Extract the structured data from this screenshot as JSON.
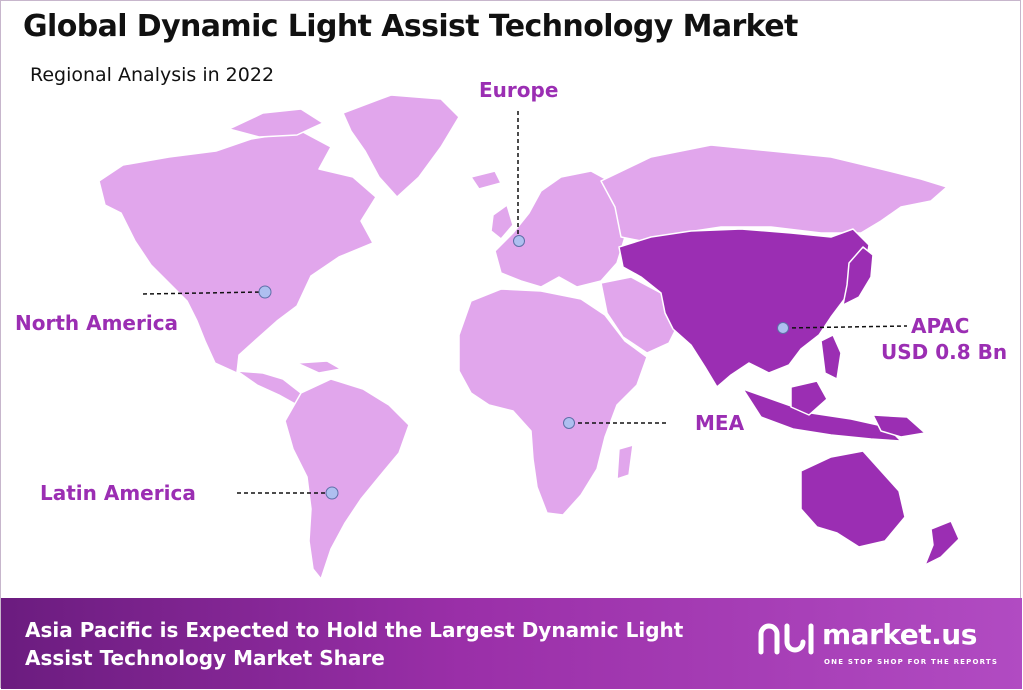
{
  "header": {
    "title": "Global Dynamic Light Assist Technology Market",
    "subtitle": "Regional Analysis in 2022"
  },
  "regions": [
    {
      "name": "North America",
      "value": "",
      "highlighted": false
    },
    {
      "name": "Europe",
      "value": "",
      "highlighted": false
    },
    {
      "name": "APAC",
      "value": "USD 0.8 Bn",
      "highlighted": true
    },
    {
      "name": "MEA",
      "value": "",
      "highlighted": false
    },
    {
      "name": "Latin America",
      "value": "",
      "highlighted": false
    }
  ],
  "colors": {
    "land": "#e1a6ec",
    "highlight": "#9b2eb3",
    "label": "#9b2eb3",
    "marker": "#aebff0",
    "footer_start": "#6b1c7f",
    "footer_end": "#b14bc2"
  },
  "footer": {
    "text": "Asia Pacific is Expected to Hold the Largest Dynamic Light Assist Technology Market Share",
    "brand_name": "market.us",
    "brand_tagline": "ONE STOP SHOP FOR THE REPORTS",
    "brand_icon": "market-us-logo-icon"
  }
}
